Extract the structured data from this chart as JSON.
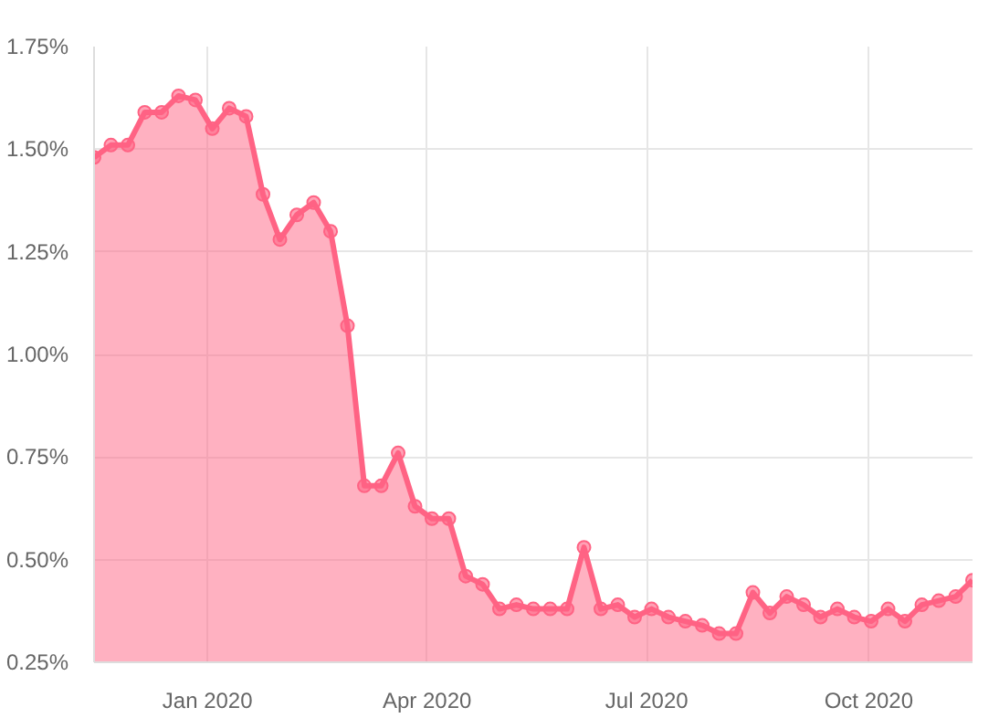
{
  "chart_data": {
    "type": "area",
    "x": [
      "2019-11-15",
      "2019-11-22",
      "2019-11-29",
      "2019-12-06",
      "2019-12-13",
      "2019-12-20",
      "2019-12-27",
      "2020-01-03",
      "2020-01-10",
      "2020-01-17",
      "2020-01-24",
      "2020-01-31",
      "2020-02-07",
      "2020-02-14",
      "2020-02-21",
      "2020-02-28",
      "2020-03-06",
      "2020-03-13",
      "2020-03-20",
      "2020-03-27",
      "2020-04-03",
      "2020-04-10",
      "2020-04-17",
      "2020-04-24",
      "2020-05-01",
      "2020-05-08",
      "2020-05-15",
      "2020-05-22",
      "2020-05-29",
      "2020-06-05",
      "2020-06-12",
      "2020-06-19",
      "2020-06-26",
      "2020-07-03",
      "2020-07-10",
      "2020-07-17",
      "2020-07-24",
      "2020-07-31",
      "2020-08-07",
      "2020-08-14",
      "2020-08-21",
      "2020-08-28",
      "2020-09-04",
      "2020-09-11",
      "2020-09-18",
      "2020-09-25",
      "2020-10-02",
      "2020-10-09",
      "2020-10-16",
      "2020-10-23",
      "2020-10-30",
      "2020-11-06",
      "2020-11-13"
    ],
    "series": [
      {
        "color": "#ff6384",
        "values": [
          1.48,
          1.51,
          1.51,
          1.59,
          1.59,
          1.63,
          1.62,
          1.55,
          1.6,
          1.58,
          1.39,
          1.28,
          1.34,
          1.37,
          1.3,
          1.07,
          0.68,
          0.68,
          0.76,
          0.63,
          0.6,
          0.6,
          0.46,
          0.44,
          0.38,
          0.39,
          0.38,
          0.38,
          0.38,
          0.53,
          0.38,
          0.39,
          0.36,
          0.38,
          0.36,
          0.35,
          0.34,
          0.32,
          0.32,
          0.42,
          0.37,
          0.41,
          0.39,
          0.36,
          0.38,
          0.36,
          0.35,
          0.38,
          0.35,
          0.39,
          0.4,
          0.41,
          0.45
        ]
      }
    ],
    "xlim": [
      "2019-11-15",
      "2020-11-13"
    ],
    "xticks": [
      {
        "value": "2020-01-01",
        "label": "Jan 2020"
      },
      {
        "value": "2020-04-01",
        "label": "Apr 2020"
      },
      {
        "value": "2020-07-01",
        "label": "Jul 2020"
      },
      {
        "value": "2020-10-01",
        "label": "Oct 2020"
      }
    ],
    "ylim": [
      0.25,
      1.75
    ],
    "yticks": [
      {
        "value": 0.25,
        "label": "0.25%"
      },
      {
        "value": 0.5,
        "label": "0.50%"
      },
      {
        "value": 0.75,
        "label": "0.75%"
      },
      {
        "value": 1.0,
        "label": "1.00%"
      },
      {
        "value": 1.25,
        "label": "1.25%"
      },
      {
        "value": 1.5,
        "label": "1.50%"
      },
      {
        "value": 1.75,
        "label": "1.75%"
      }
    ],
    "grid": true,
    "marker": "circle"
  }
}
